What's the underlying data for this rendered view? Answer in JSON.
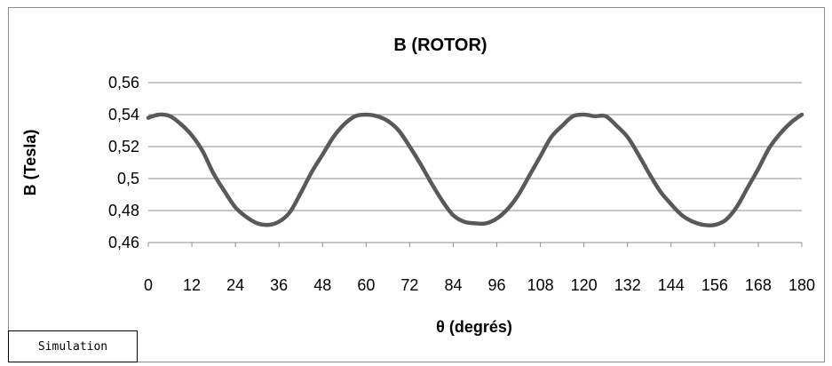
{
  "chart_data": {
    "type": "line",
    "title": "B (ROTOR)",
    "xlabel": "θ (degrés)",
    "ylabel": "B (Tesla)",
    "xlim": [
      0,
      180
    ],
    "ylim": [
      0.46,
      0.56
    ],
    "x_ticks": [
      "0",
      "12",
      "24",
      "36",
      "48",
      "60",
      "72",
      "84",
      "96",
      "108",
      "120",
      "132",
      "144",
      "156",
      "168",
      "180"
    ],
    "y_ticks": [
      "0,46",
      "0,48",
      "0,5",
      "0,52",
      "0,54",
      "0,56"
    ],
    "grid": "horizontal",
    "legend_position": "bottom-left",
    "line_color": "#595959",
    "series": [
      {
        "name": "Simulation",
        "x": [
          0,
          3,
          6,
          9,
          12,
          15,
          18,
          21,
          24,
          27,
          30,
          33,
          36,
          39,
          42,
          45,
          48,
          51,
          54,
          57,
          60,
          63,
          66,
          69,
          72,
          75,
          78,
          81,
          84,
          87,
          90,
          93,
          96,
          99,
          102,
          105,
          108,
          111,
          114,
          117,
          120,
          123,
          126,
          129,
          132,
          135,
          138,
          141,
          144,
          147,
          150,
          153,
          156,
          159,
          162,
          165,
          168,
          171,
          174,
          177,
          180
        ],
        "values": [
          0.538,
          0.54,
          0.539,
          0.534,
          0.527,
          0.517,
          0.503,
          0.492,
          0.482,
          0.476,
          0.472,
          0.471,
          0.473,
          0.479,
          0.491,
          0.504,
          0.515,
          0.526,
          0.534,
          0.539,
          0.54,
          0.539,
          0.536,
          0.53,
          0.52,
          0.509,
          0.497,
          0.486,
          0.477,
          0.473,
          0.472,
          0.472,
          0.475,
          0.481,
          0.49,
          0.502,
          0.514,
          0.526,
          0.533,
          0.539,
          0.54,
          0.539,
          0.539,
          0.533,
          0.526,
          0.515,
          0.503,
          0.492,
          0.484,
          0.477,
          0.473,
          0.471,
          0.471,
          0.474,
          0.482,
          0.494,
          0.506,
          0.519,
          0.528,
          0.535,
          0.54
        ]
      }
    ]
  }
}
